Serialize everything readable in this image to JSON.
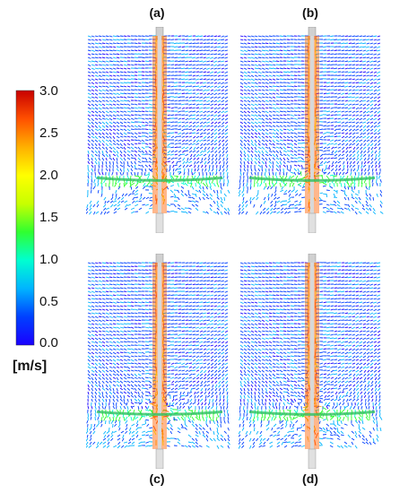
{
  "panels": [
    {
      "id": "a",
      "label": "(a)"
    },
    {
      "id": "b",
      "label": "(b)"
    },
    {
      "id": "c",
      "label": "(c)"
    },
    {
      "id": "d",
      "label": "(d)"
    }
  ],
  "colorbar": {
    "min": 0.0,
    "max": 3.0,
    "ticks": [
      "3.0",
      "2.5",
      "2.0",
      "1.5",
      "1.0",
      "0.5",
      "0.0"
    ],
    "unit": "[m/s]",
    "colors": [
      "#1a00ff",
      "#0040ff",
      "#00b4ff",
      "#00ffd0",
      "#30ff30",
      "#c8ff00",
      "#ffff00",
      "#ffb000",
      "#ff5000",
      "#c80000"
    ]
  }
}
